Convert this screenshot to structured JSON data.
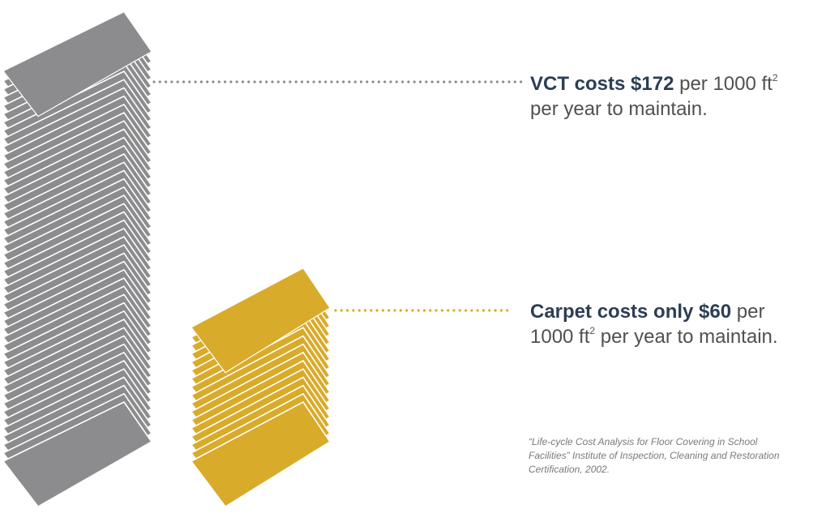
{
  "colors": {
    "vct": "#8c8c8e",
    "vct_edge": "#ffffff",
    "carpet": "#d9ab2b",
    "carpet_edge": "#ffffff",
    "text": "#505050",
    "emphasis": "#2c3e55",
    "citation": "#7a7a7a"
  },
  "icons": {
    "top_bill": "dollar-icon"
  },
  "vct": {
    "headline": "VCT costs $172",
    "unit_pre": "per 1000 ft",
    "sup": "2",
    "line2": "per year to maintain."
  },
  "carpet": {
    "headline": "Carpet costs only $60",
    "line1_tail": "per",
    "line2_pre": "1000 ft",
    "sup": "2",
    "line2_post": "per year to maintain."
  },
  "citation": {
    "line1": "“Life-cycle Cost Analysis for Floor Covering in School",
    "line2": "Facilities” Institute of Inspection, Cleaning and Restoration",
    "line3": "Certification, 2002."
  },
  "chart_data": {
    "type": "bar",
    "categories": [
      "VCT",
      "Carpet"
    ],
    "values": [
      172,
      60
    ],
    "unit": "per 1000 ft² per year"
  }
}
